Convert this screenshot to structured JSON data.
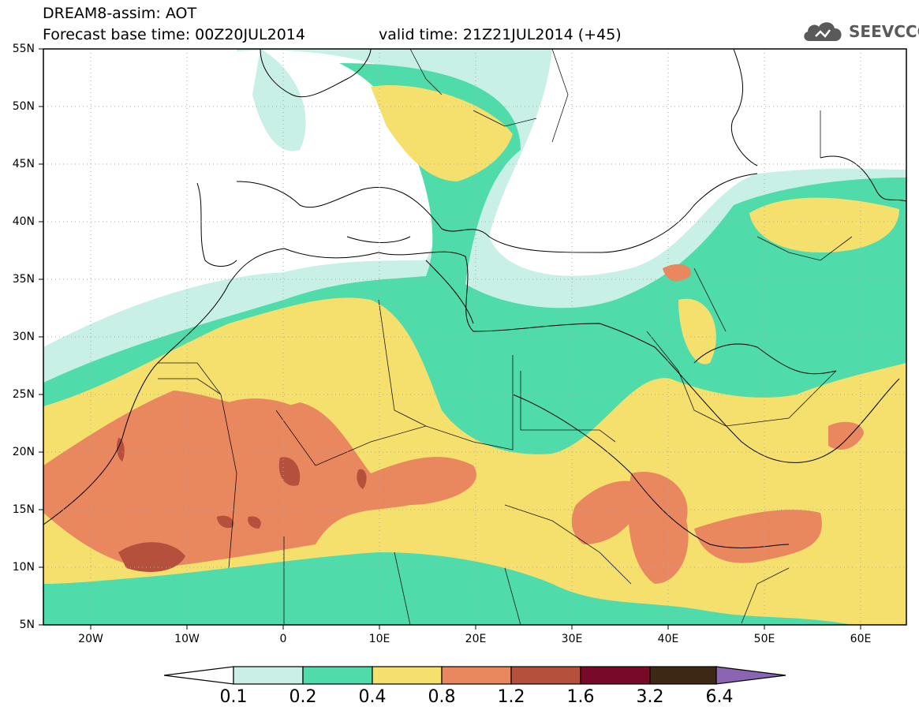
{
  "title": {
    "line1": "DREAM8-assim: AOT",
    "base_time": "Forecast base time: 00Z20JUL2014",
    "valid_time": "valid time: 21Z21JUL2014 (+45)"
  },
  "logo": {
    "text": "SEEVCCC",
    "icon": "cloud-icon"
  },
  "axes": {
    "lat_labels": [
      "55N",
      "50N",
      "45N",
      "40N",
      "35N",
      "30N",
      "25N",
      "20N",
      "15N",
      "10N",
      "5N"
    ],
    "lon_labels": [
      "20W",
      "10W",
      "0",
      "10E",
      "20E",
      "30E",
      "40E",
      "50E",
      "60E"
    ]
  },
  "colorbar": {
    "colors": [
      "#ffffff",
      "#c8f0e6",
      "#4fdcaa",
      "#f5e06e",
      "#e9875e",
      "#b4503c",
      "#780a28",
      "#3c2814",
      "#8c64b4"
    ],
    "labels": [
      "0.1",
      "0.2",
      "0.4",
      "0.8",
      "1.2",
      "1.6",
      "3.2",
      "6.4"
    ]
  }
}
